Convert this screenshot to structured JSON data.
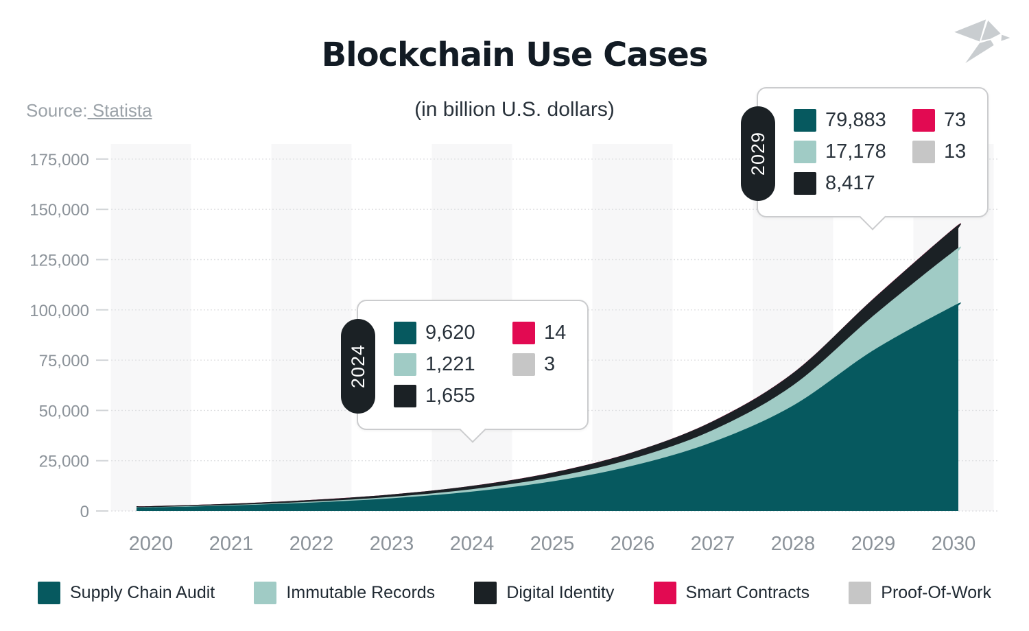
{
  "header": {
    "title": "Blockchain Use Cases",
    "subtitle": "(in billion U.S. dollars)",
    "source_prefix": "Source:",
    "source_link": " Statista",
    "logo_name": "origami-bird-logo",
    "logo_color": "#C9CDD0"
  },
  "chart_data": {
    "type": "area",
    "stacked": true,
    "title": "Blockchain Use Cases",
    "subtitle": "(in billion U.S. dollars)",
    "x": [
      2020,
      2021,
      2022,
      2023,
      2024,
      2025,
      2026,
      2027,
      2028,
      2029,
      2030
    ],
    "series": [
      {
        "name": "Supply Chain Audit",
        "color": "#06595parse",
        "values": []
      },
      {
        "name": "Immutable Records",
        "color": "#A0CBC5",
        "values": []
      },
      {
        "name": "Digital Identity",
        "color": "#1B2125",
        "values": []
      },
      {
        "name": "Smart Contracts",
        "color": "#E20A52",
        "values": []
      },
      {
        "name": "Proof-Of-Work",
        "color": "#C6C6C6",
        "values": []
      }
    ],
    "series_values_note": "values below",
    "ylim": [
      0,
      183000
    ],
    "yticks": [
      0,
      25000,
      50000,
      75000,
      100000,
      125000,
      150000,
      175000
    ],
    "ytick_labels": [
      "0",
      "25,000",
      "50,000",
      "75,000",
      "100,000",
      "125,000",
      "150,000",
      "175,000"
    ],
    "grid": "horizontal-dotted",
    "legend_position": "bottom"
  },
  "tooltips": [
    {
      "year": "2024",
      "entries": [
        {
          "series": "Supply Chain Audit",
          "value": "9,620"
        },
        {
          "series": "Immutable Records",
          "value": "1,221"
        },
        {
          "series": "Digital Identity",
          "value": "1,655"
        },
        {
          "series": "Smart Contracts",
          "value": "14"
        },
        {
          "series": "Proof-Of-Work",
          "value": "3"
        }
      ]
    },
    {
      "year": "2029",
      "entries": [
        {
          "series": "Supply Chain Audit",
          "value": "79,883"
        },
        {
          "series": "Immutable Records",
          "value": "17,178"
        },
        {
          "series": "Digital Identity",
          "value": "8,417"
        },
        {
          "series": "Smart Contracts",
          "value": "73"
        },
        {
          "series": "Proof-Of-Work",
          "value": "13"
        }
      ]
    }
  ],
  "colors": {
    "supply_chain_audit": "#06595F",
    "immutable_records": "#A0CBC5",
    "digital_identity": "#1B2125",
    "smart_contracts": "#E20A52",
    "proof_of_work": "#C6C6C6",
    "stripe": "#F7F7F8",
    "gridline": "#E0E1E3",
    "tick": "#D2D5D8",
    "axis_text": "#8B9299",
    "title_text": "#121B24",
    "tooltip_text": "#2A333C",
    "pill_bg": "#1B2125"
  }
}
